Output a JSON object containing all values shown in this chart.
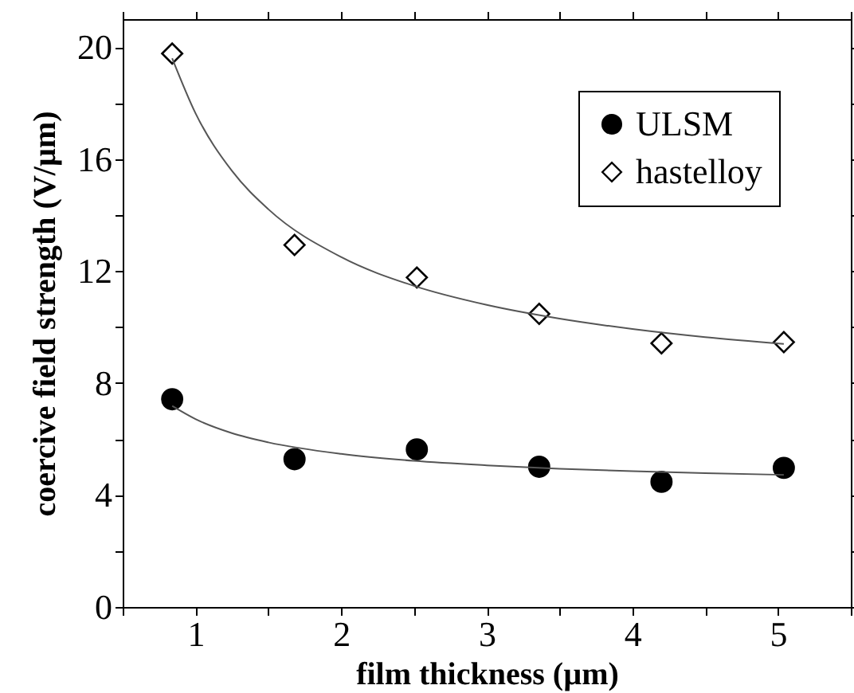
{
  "chart_data": {
    "type": "scatter",
    "xlabel": "film thickness (µm)",
    "ylabel": "coercive field strength (V/µm)",
    "x": [
      0.84,
      1.68,
      2.52,
      3.36,
      4.2,
      5.04
    ],
    "series": [
      {
        "name": "ULSM",
        "color": "#000000",
        "marker": "circle",
        "values": [
          7.42,
          5.28,
          5.63,
          5.01,
          4.47,
          4.97
        ]
      },
      {
        "name": "hastelloy",
        "color": "#ffffff",
        "marker": "diamond",
        "values": [
          19.77,
          12.93,
          11.77,
          10.47,
          9.42,
          9.46
        ]
      },
      {
        "type": "line",
        "color": "#555555",
        "x": [
          0.84,
          1.0,
          1.25,
          1.5,
          2,
          2.5,
          3,
          3.5,
          4,
          4.5,
          5.04
        ],
        "values": [
          7.18,
          6.71,
          6.21,
          5.88,
          5.47,
          5.22,
          5.06,
          4.94,
          4.85,
          4.78,
          4.72
        ]
      },
      {
        "type": "line",
        "color": "#555555",
        "x": [
          0.84,
          1.0,
          1.25,
          1.5,
          2,
          2.5,
          3,
          3.5,
          4,
          4.5,
          5.04
        ],
        "values": [
          19.6,
          17.64,
          15.58,
          14.21,
          12.5,
          11.47,
          10.79,
          10.3,
          9.93,
          9.64,
          9.4
        ]
      }
    ],
    "xlim": [
      0.5,
      5.5
    ],
    "xticks": [
      {
        "value": 0.5,
        "label": null
      },
      1,
      {
        "value": 1.5,
        "label": null
      },
      2,
      {
        "value": 2.5,
        "label": null
      },
      3,
      {
        "value": 3.5,
        "label": null
      },
      4,
      {
        "value": 4.5,
        "label": null
      },
      5,
      {
        "value": 5.5,
        "label": null
      }
    ],
    "ylim": [
      0,
      21
    ],
    "yticks": [
      0,
      {
        "value": 2,
        "label": null
      },
      4,
      {
        "value": 6,
        "label": null
      },
      8,
      {
        "value": 10,
        "label": null
      },
      12,
      {
        "value": 14,
        "label": null
      },
      16,
      {
        "value": 18,
        "label": null
      },
      20
    ],
    "grid": false,
    "legend": "top right",
    "line_style": "solid"
  }
}
